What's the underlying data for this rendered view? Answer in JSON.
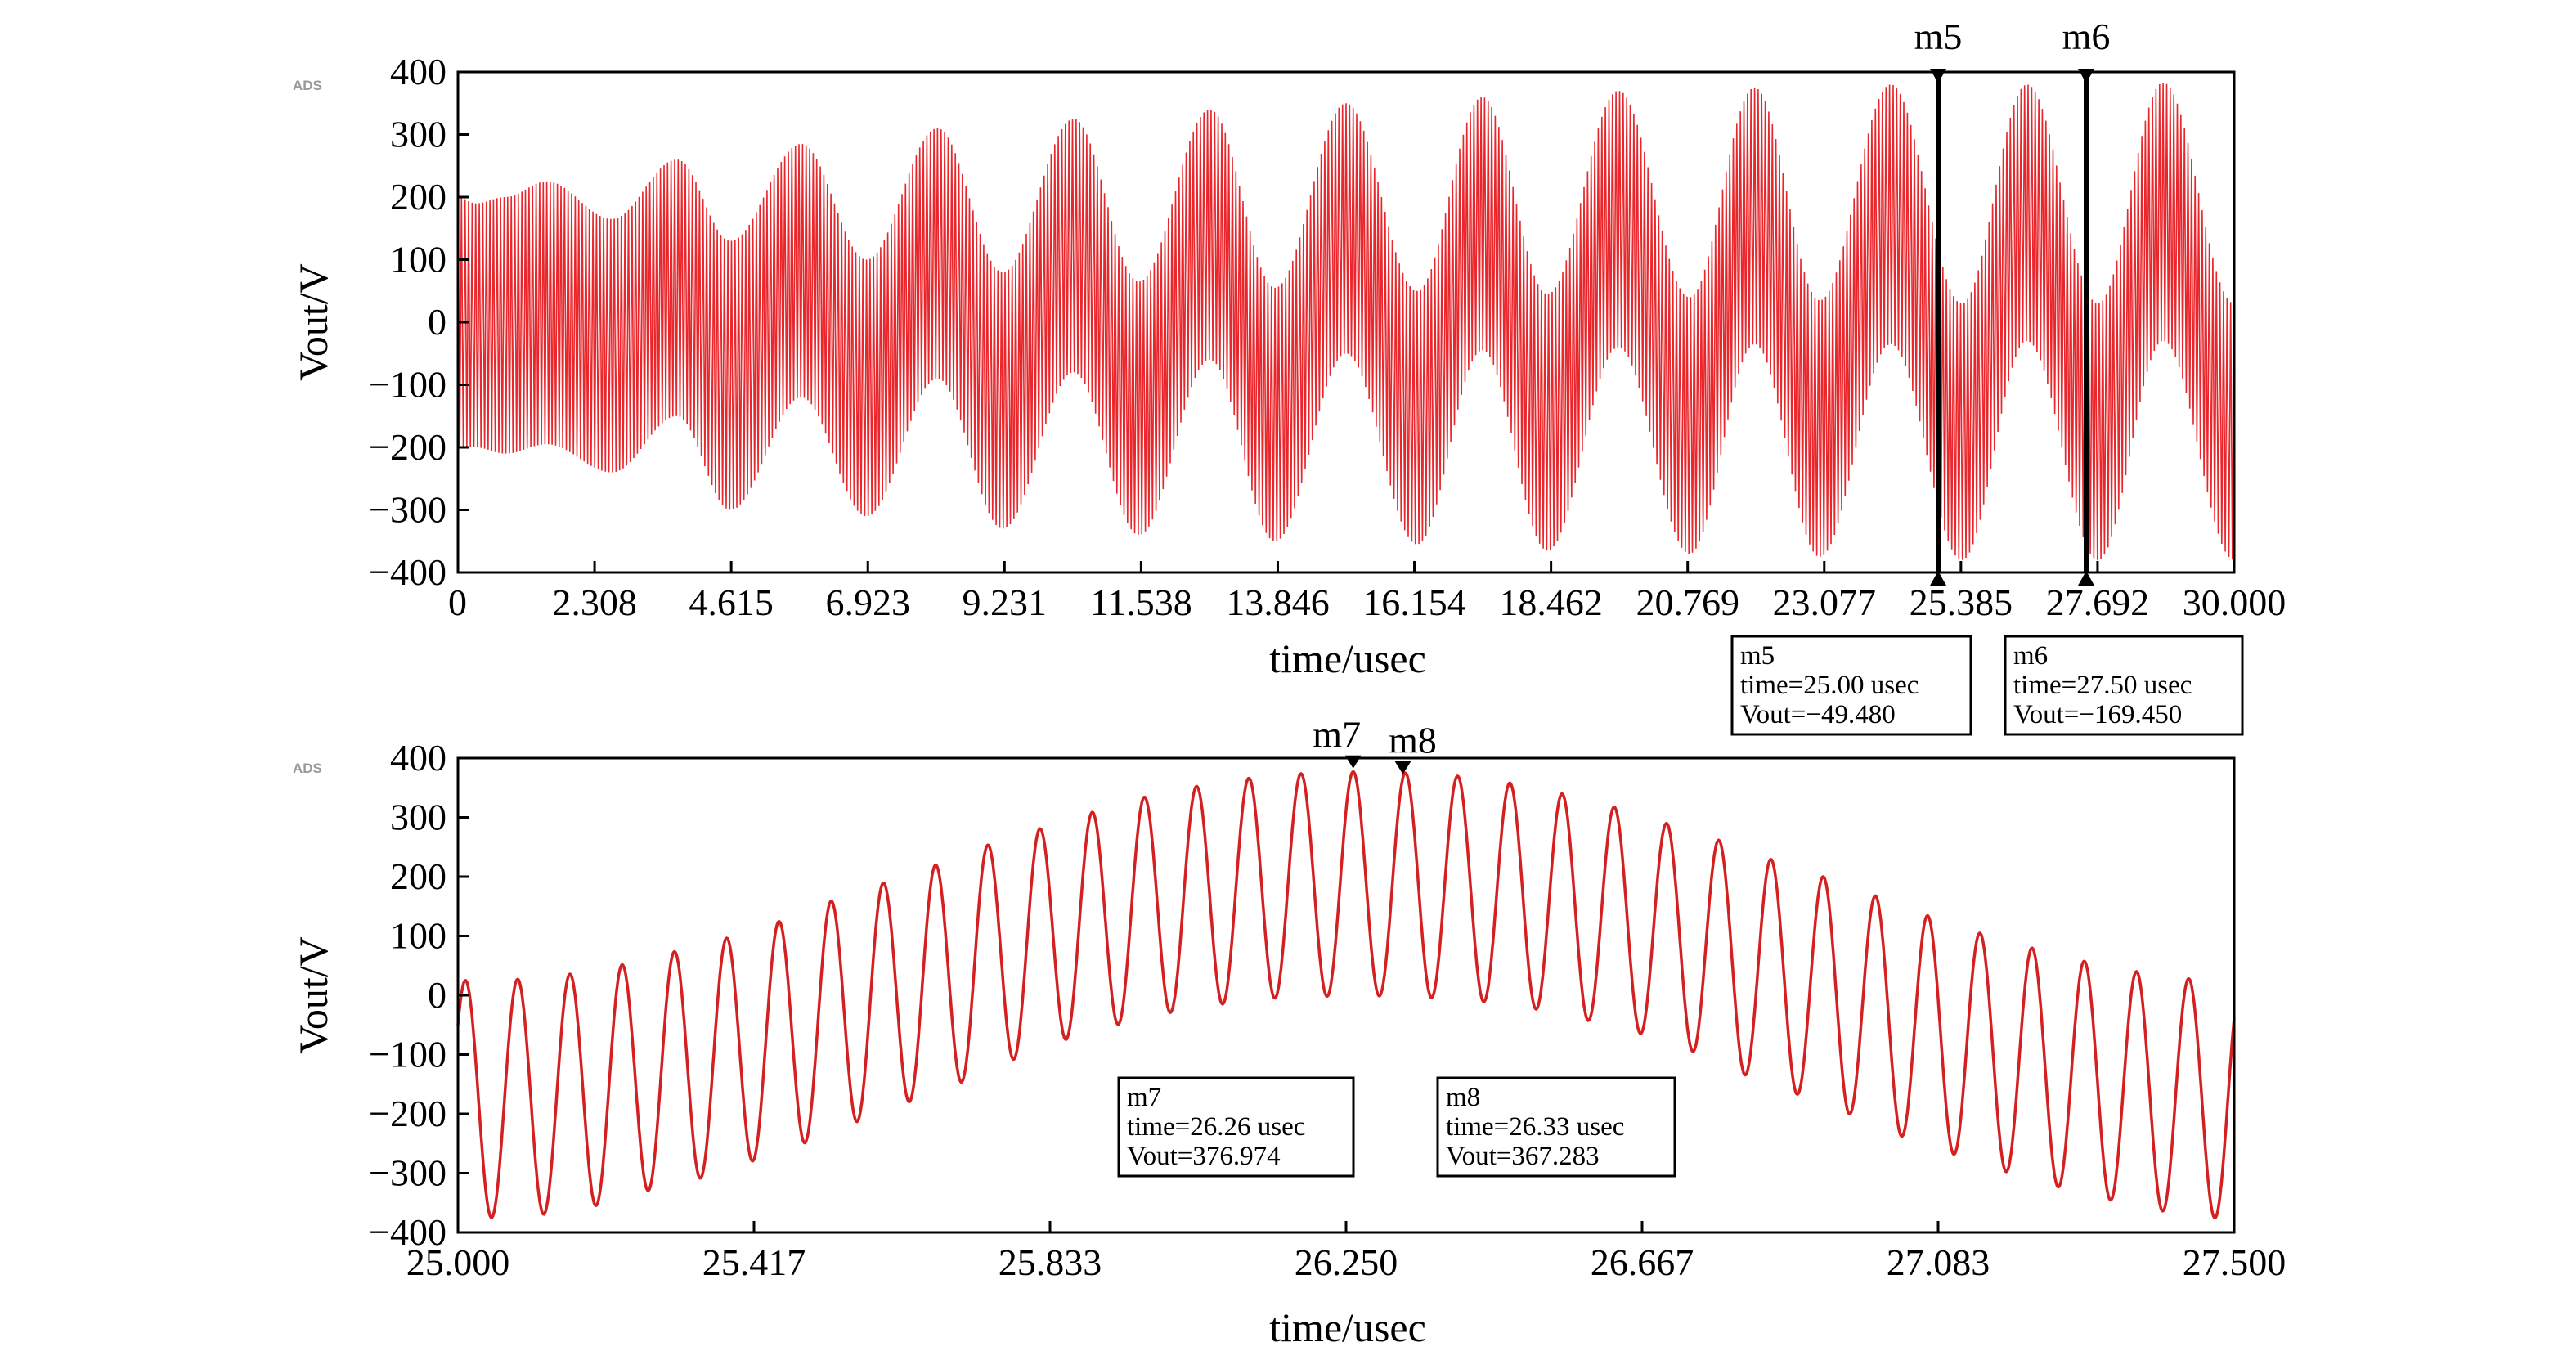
{
  "chart_data": [
    {
      "type": "line",
      "logo": "ADS",
      "xlabel": "time/usec",
      "ylabel": "Vout/V",
      "xlim": [
        0,
        30.0
      ],
      "ylim": [
        -400,
        400
      ],
      "x_ticks": [
        "0",
        "2.308",
        "4.615",
        "6.923",
        "9.231",
        "11.538",
        "13.846",
        "16.154",
        "18.462",
        "20.769",
        "23.077",
        "25.385",
        "27.692",
        "30.000"
      ],
      "y_ticks": [
        "400",
        "300",
        "200",
        "100",
        "0",
        "−100",
        "−200",
        "−300",
        "−400"
      ],
      "grid": false,
      "series": [
        {
          "color": "#e8262b",
          "carrier_period_usec": 0.06,
          "envelope": {
            "x": [
              0,
              0.3,
              0.8,
              1.5,
              2.6,
              3.7,
              4.6,
              5.8,
              6.9,
              8.1,
              9.2,
              10.4,
              11.5,
              12.7,
              13.8,
              15.0,
              16.2,
              17.3,
              18.4,
              19.6,
              20.8,
              21.9,
              23.0,
              24.2,
              25.4,
              26.5,
              27.7,
              28.8,
              30.0
            ],
            "upper": [
              200,
              190,
              200,
              225,
              165,
              260,
              130,
              285,
              100,
              310,
              80,
              325,
              65,
              340,
              55,
              350,
              50,
              360,
              45,
              370,
              40,
              375,
              35,
              380,
              30,
              380,
              30,
              383,
              30
            ],
            "lower": [
              -200,
              -200,
              -210,
              -195,
              -240,
              -150,
              -300,
              -120,
              -310,
              -90,
              -330,
              -80,
              -340,
              -60,
              -350,
              -50,
              -355,
              -45,
              -365,
              -40,
              -370,
              -35,
              -375,
              -35,
              -380,
              -30,
              -380,
              -30,
              -380
            ]
          }
        }
      ],
      "markers": [
        {
          "name": "m5",
          "time": 25.0,
          "value": -49.48,
          "label_name": "m5",
          "label_time": "time=25.00 usec",
          "label_value": "Vout=−49.480"
        },
        {
          "name": "m6",
          "time": 27.5,
          "value": -169.45,
          "label_name": "m6",
          "label_time": "time=27.50 usec",
          "label_value": "Vout=−169.450"
        }
      ]
    },
    {
      "type": "line",
      "logo": "ADS",
      "xlabel": "time/usec",
      "ylabel": "Vout/V",
      "xlim": [
        25.0,
        27.5
      ],
      "ylim": [
        -400,
        400
      ],
      "x_ticks": [
        "25.000",
        "25.417",
        "25.833",
        "26.250",
        "26.667",
        "27.083",
        "27.500"
      ],
      "y_ticks": [
        "400",
        "300",
        "200",
        "100",
        "0",
        "−100",
        "−200",
        "−300",
        "−400"
      ],
      "grid": false,
      "series": [
        {
          "color": "#d42020",
          "period_usec": 0.0735,
          "phase_time_usec": 26.26,
          "envelope": {
            "x": [
              25.0,
              25.04,
              25.11,
              25.19,
              25.26,
              25.33,
              25.41,
              25.48,
              25.55,
              25.63,
              25.7,
              25.77,
              25.85,
              25.92,
              25.99,
              26.07,
              26.14,
              26.21,
              26.26,
              26.33,
              26.4,
              26.48,
              26.55,
              26.62,
              26.7,
              26.77,
              26.84,
              26.92,
              26.99,
              27.06,
              27.14,
              27.21,
              27.28,
              27.36,
              27.43,
              27.5
            ],
            "upper": [
              25,
              25,
              28,
              40,
              58,
              80,
              105,
              135,
              168,
              200,
              230,
              262,
              290,
              318,
              340,
              358,
              370,
              375,
              377,
              375,
              370,
              358,
              340,
              318,
              290,
              262,
              230,
              200,
              168,
              135,
              105,
              80,
              58,
              40,
              28,
              25
            ],
            "lower": [
              -375,
              -375,
              -370,
              -355,
              -330,
              -310,
              -280,
              -250,
              -215,
              -180,
              -148,
              -110,
              -75,
              -50,
              -30,
              -15,
              -5,
              -2,
              0,
              -2,
              -5,
              -15,
              -30,
              -50,
              -75,
              -110,
              -148,
              -180,
              -215,
              -250,
              -280,
              -310,
              -330,
              -355,
              -370,
              -378
            ]
          }
        }
      ],
      "markers": [
        {
          "name": "m7",
          "time": 26.26,
          "value": 376.974,
          "label_name": "m7",
          "label_time": "time=26.26 usec",
          "label_value": "Vout=376.974"
        },
        {
          "name": "m8",
          "time": 26.33,
          "value": 367.283,
          "label_name": "m8",
          "label_time": "time=26.33 usec",
          "label_value": "Vout=367.283"
        }
      ]
    }
  ]
}
